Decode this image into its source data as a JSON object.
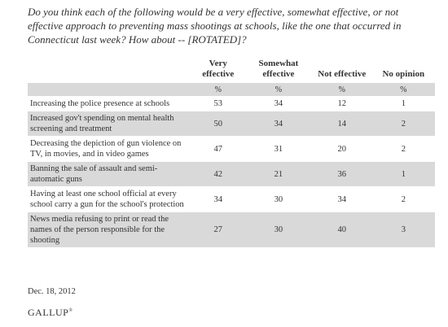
{
  "question": "Do you think each of the following would be a very effective, somewhat effective, or not effective approach to preventing mass shootings at schools, like the one that occurred in Connecticut last week? How about -- [ROTATED]?",
  "table": {
    "headers": [
      "Very effective",
      "Somewhat effective",
      "Not effective",
      "No opinion"
    ],
    "unit": "%",
    "rows": [
      {
        "label": "Increasing the police presence at schools",
        "values": [
          "53",
          "34",
          "12",
          "1"
        ]
      },
      {
        "label": "Increased gov't spending on mental health screening and treatment",
        "values": [
          "50",
          "34",
          "14",
          "2"
        ]
      },
      {
        "label": "Decreasing the depiction of gun violence on TV, in movies, and in video games",
        "values": [
          "47",
          "31",
          "20",
          "2"
        ]
      },
      {
        "label": "Banning the sale of assault and semi-automatic guns",
        "values": [
          "42",
          "21",
          "36",
          "1"
        ]
      },
      {
        "label": "Having at least one school official at every school carry a gun for the school's protection",
        "values": [
          "34",
          "30",
          "34",
          "2"
        ]
      },
      {
        "label": "News media refusing to print or read the names of the person responsible for the shooting",
        "values": [
          "27",
          "30",
          "40",
          "3"
        ]
      }
    ]
  },
  "date": "Dec. 18, 2012",
  "brand": {
    "name": "GALLUP",
    "mark": "®"
  }
}
